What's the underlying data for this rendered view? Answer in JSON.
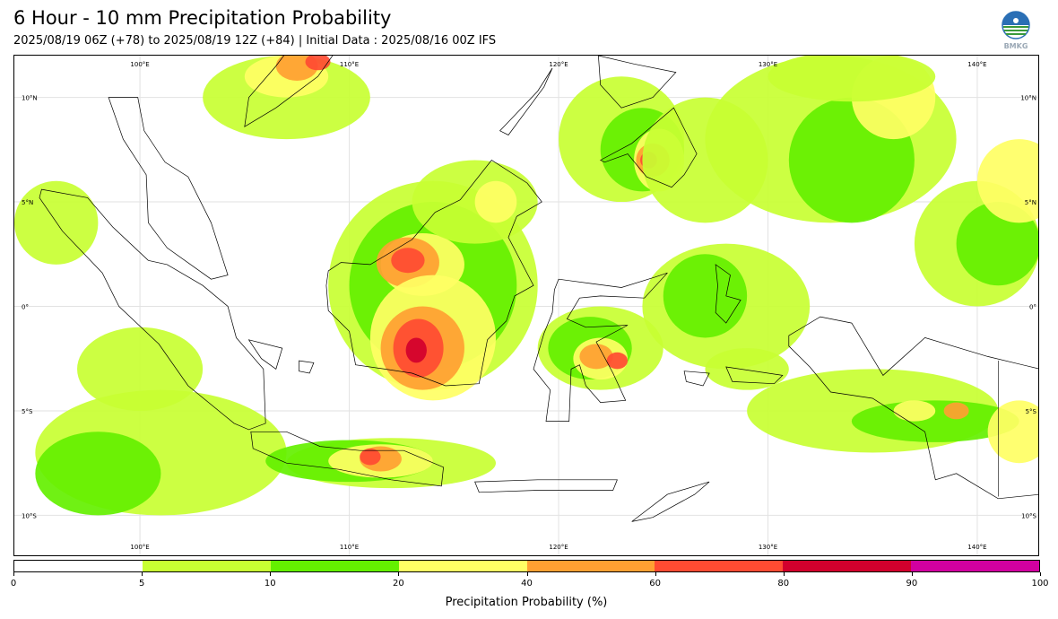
{
  "header": {
    "title": "6 Hour - 10 mm Precipitation Probability",
    "subtitle": "2025/08/19 06Z (+78) to 2025/08/19 12Z (+84) | Initial Data : 2025/08/16 00Z IFS"
  },
  "logo": {
    "icon": "bmkg-logo-icon",
    "text": "BMKG"
  },
  "map": {
    "region": "Indonesia",
    "lon_range": [
      94,
      143
    ],
    "lat_range": [
      -12,
      12
    ],
    "lon_ticks_top": [
      "100°E",
      "110°E",
      "120°E",
      "130°E",
      "140°E"
    ],
    "lon_ticks_bottom": [
      "100°E",
      "110°E",
      "120°E",
      "130°E",
      "140°E"
    ],
    "lat_ticks_left": [
      "10°N",
      "5°N",
      "0°",
      "5°S",
      "10°S"
    ],
    "lat_ticks_right": [
      "10°N",
      "5°N",
      "0°",
      "5°S",
      "10°S"
    ],
    "gridlines": true
  },
  "colorbar": {
    "label": "Precipitation Probability (%)",
    "ticks": [
      "0",
      "5",
      "10",
      "20",
      "40",
      "60",
      "80",
      "90",
      "100"
    ],
    "colors": [
      "#ffffff",
      "#c8ff32",
      "#64f000",
      "#ffff64",
      "#ffa032",
      "#ff4b32",
      "#d2002d",
      "#d200a0"
    ]
  }
}
